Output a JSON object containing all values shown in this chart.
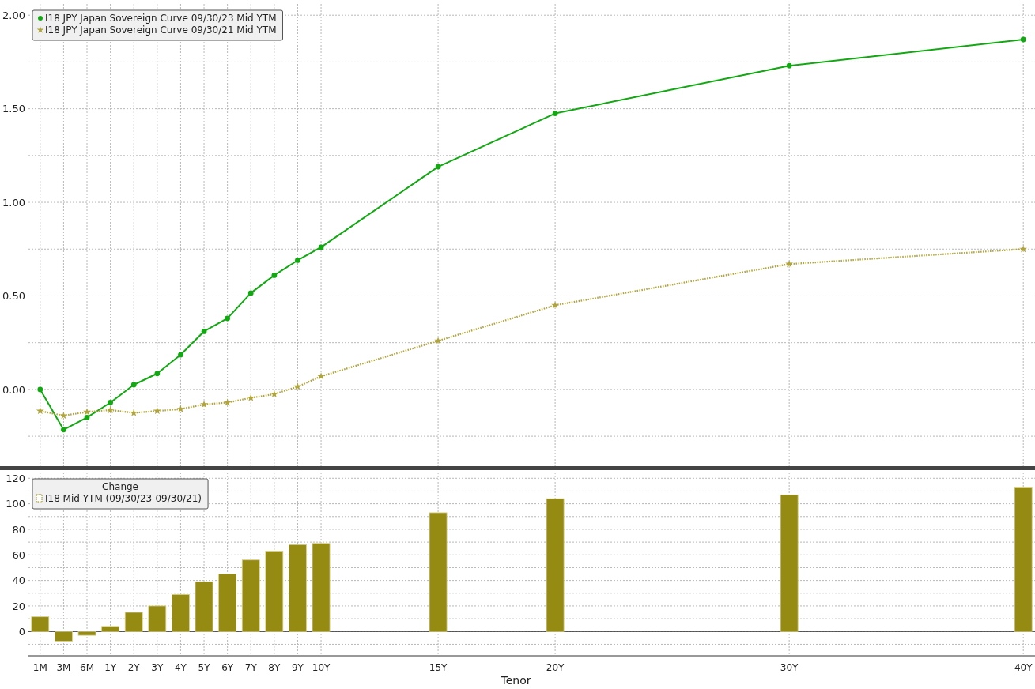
{
  "chart_data": [
    {
      "type": "line",
      "categories": [
        null,
        null,
        null,
        null,
        null,
        null,
        null,
        null,
        null,
        null,
        null,
        null,
        null,
        null,
        null,
        null,
        null,
        null,
        null,
        null,
        null,
        null,
        null,
        null,
        null,
        null,
        null,
        null,
        null,
        null,
        null,
        null,
        null,
        null,
        null,
        null,
        null,
        null,
        null,
        null,
        null,
        null,
        null
      ],
      "ylim": [
        -0.41,
        2.06
      ],
      "yticks": [
        {
          "value": -0.25,
          "label": null
        },
        {
          "value": 0,
          "label": "0.00"
        },
        {
          "value": 0.25,
          "label": null
        },
        {
          "value": 0.5,
          "label": "0.50"
        },
        {
          "value": 0.75,
          "label": null
        },
        {
          "value": 1,
          "label": "1.00"
        },
        {
          "value": 1.25,
          "label": null
        },
        {
          "value": 1.5,
          "label": "1.50"
        },
        {
          "value": 1.75,
          "label": null
        },
        {
          "value": 2,
          "label": "2.00"
        }
      ],
      "grid": true,
      "legend": "top left",
      "series": [
        {
          "name": "I18 JPY Japan Sovereign Curve 09/30/23 Mid YTM",
          "color": "#12a812",
          "marker": "circle",
          "line_style": "solid",
          "values": [
            0.0,
            -0.215,
            -0.15,
            -0.07,
            0.025,
            0.085,
            0.185,
            0.31,
            0.38,
            0.515,
            0.61,
            0.69,
            0.76,
            null,
            null,
            null,
            null,
            1.19,
            null,
            null,
            null,
            null,
            1.475,
            null,
            null,
            null,
            null,
            null,
            null,
            null,
            null,
            null,
            1.73,
            null,
            null,
            null,
            null,
            null,
            null,
            null,
            null,
            null,
            1.87
          ]
        },
        {
          "name": "I18 JPY Japan Sovereign Curve 09/30/21 Mid YTM",
          "color": "#b0a43c",
          "marker": "star",
          "line_style": "dotted",
          "values": [
            -0.115,
            -0.14,
            -0.12,
            -0.11,
            -0.125,
            -0.115,
            -0.105,
            -0.08,
            -0.07,
            -0.045,
            -0.025,
            0.015,
            0.07,
            null,
            null,
            null,
            null,
            0.26,
            null,
            null,
            null,
            null,
            0.45,
            null,
            null,
            null,
            null,
            null,
            null,
            null,
            null,
            null,
            0.67,
            null,
            null,
            null,
            null,
            null,
            null,
            null,
            null,
            null,
            0.75
          ]
        }
      ]
    },
    {
      "type": "bar",
      "categories": [
        "1M",
        "3M",
        "6M",
        "1Y",
        "2Y",
        "3Y",
        "4Y",
        "5Y",
        "6Y",
        "7Y",
        "8Y",
        "9Y",
        "10Y",
        null,
        null,
        null,
        null,
        "15Y",
        null,
        null,
        null,
        null,
        "20Y",
        null,
        null,
        null,
        null,
        null,
        null,
        null,
        null,
        null,
        "30Y",
        null,
        null,
        null,
        null,
        null,
        null,
        null,
        null,
        null,
        "40Y"
      ],
      "ylim": [
        -19,
        124.5
      ],
      "yticks": [
        {
          "value": -10,
          "label": null
        },
        0,
        {
          "value": 10,
          "label": null
        },
        20,
        {
          "value": 30,
          "label": null
        },
        40,
        {
          "value": 50,
          "label": null
        },
        60,
        {
          "value": 70,
          "label": null
        },
        80,
        {
          "value": 90,
          "label": null
        },
        100,
        {
          "value": 110,
          "label": null
        },
        120
      ],
      "xlabel": "Tenor",
      "legend_title": "Change",
      "grid": true,
      "legend": "top left",
      "series": [
        {
          "name": "I18 Mid YTM (09/30/23-09/30/21)",
          "color": "#958a12",
          "values": [
            11.5,
            -7.5,
            -3,
            4,
            15,
            20,
            29,
            39,
            45,
            56,
            63,
            68,
            69,
            null,
            null,
            null,
            null,
            93,
            null,
            null,
            null,
            null,
            104,
            null,
            null,
            null,
            null,
            null,
            null,
            null,
            null,
            null,
            107,
            null,
            null,
            null,
            null,
            null,
            null,
            null,
            null,
            null,
            113
          ]
        }
      ]
    }
  ]
}
